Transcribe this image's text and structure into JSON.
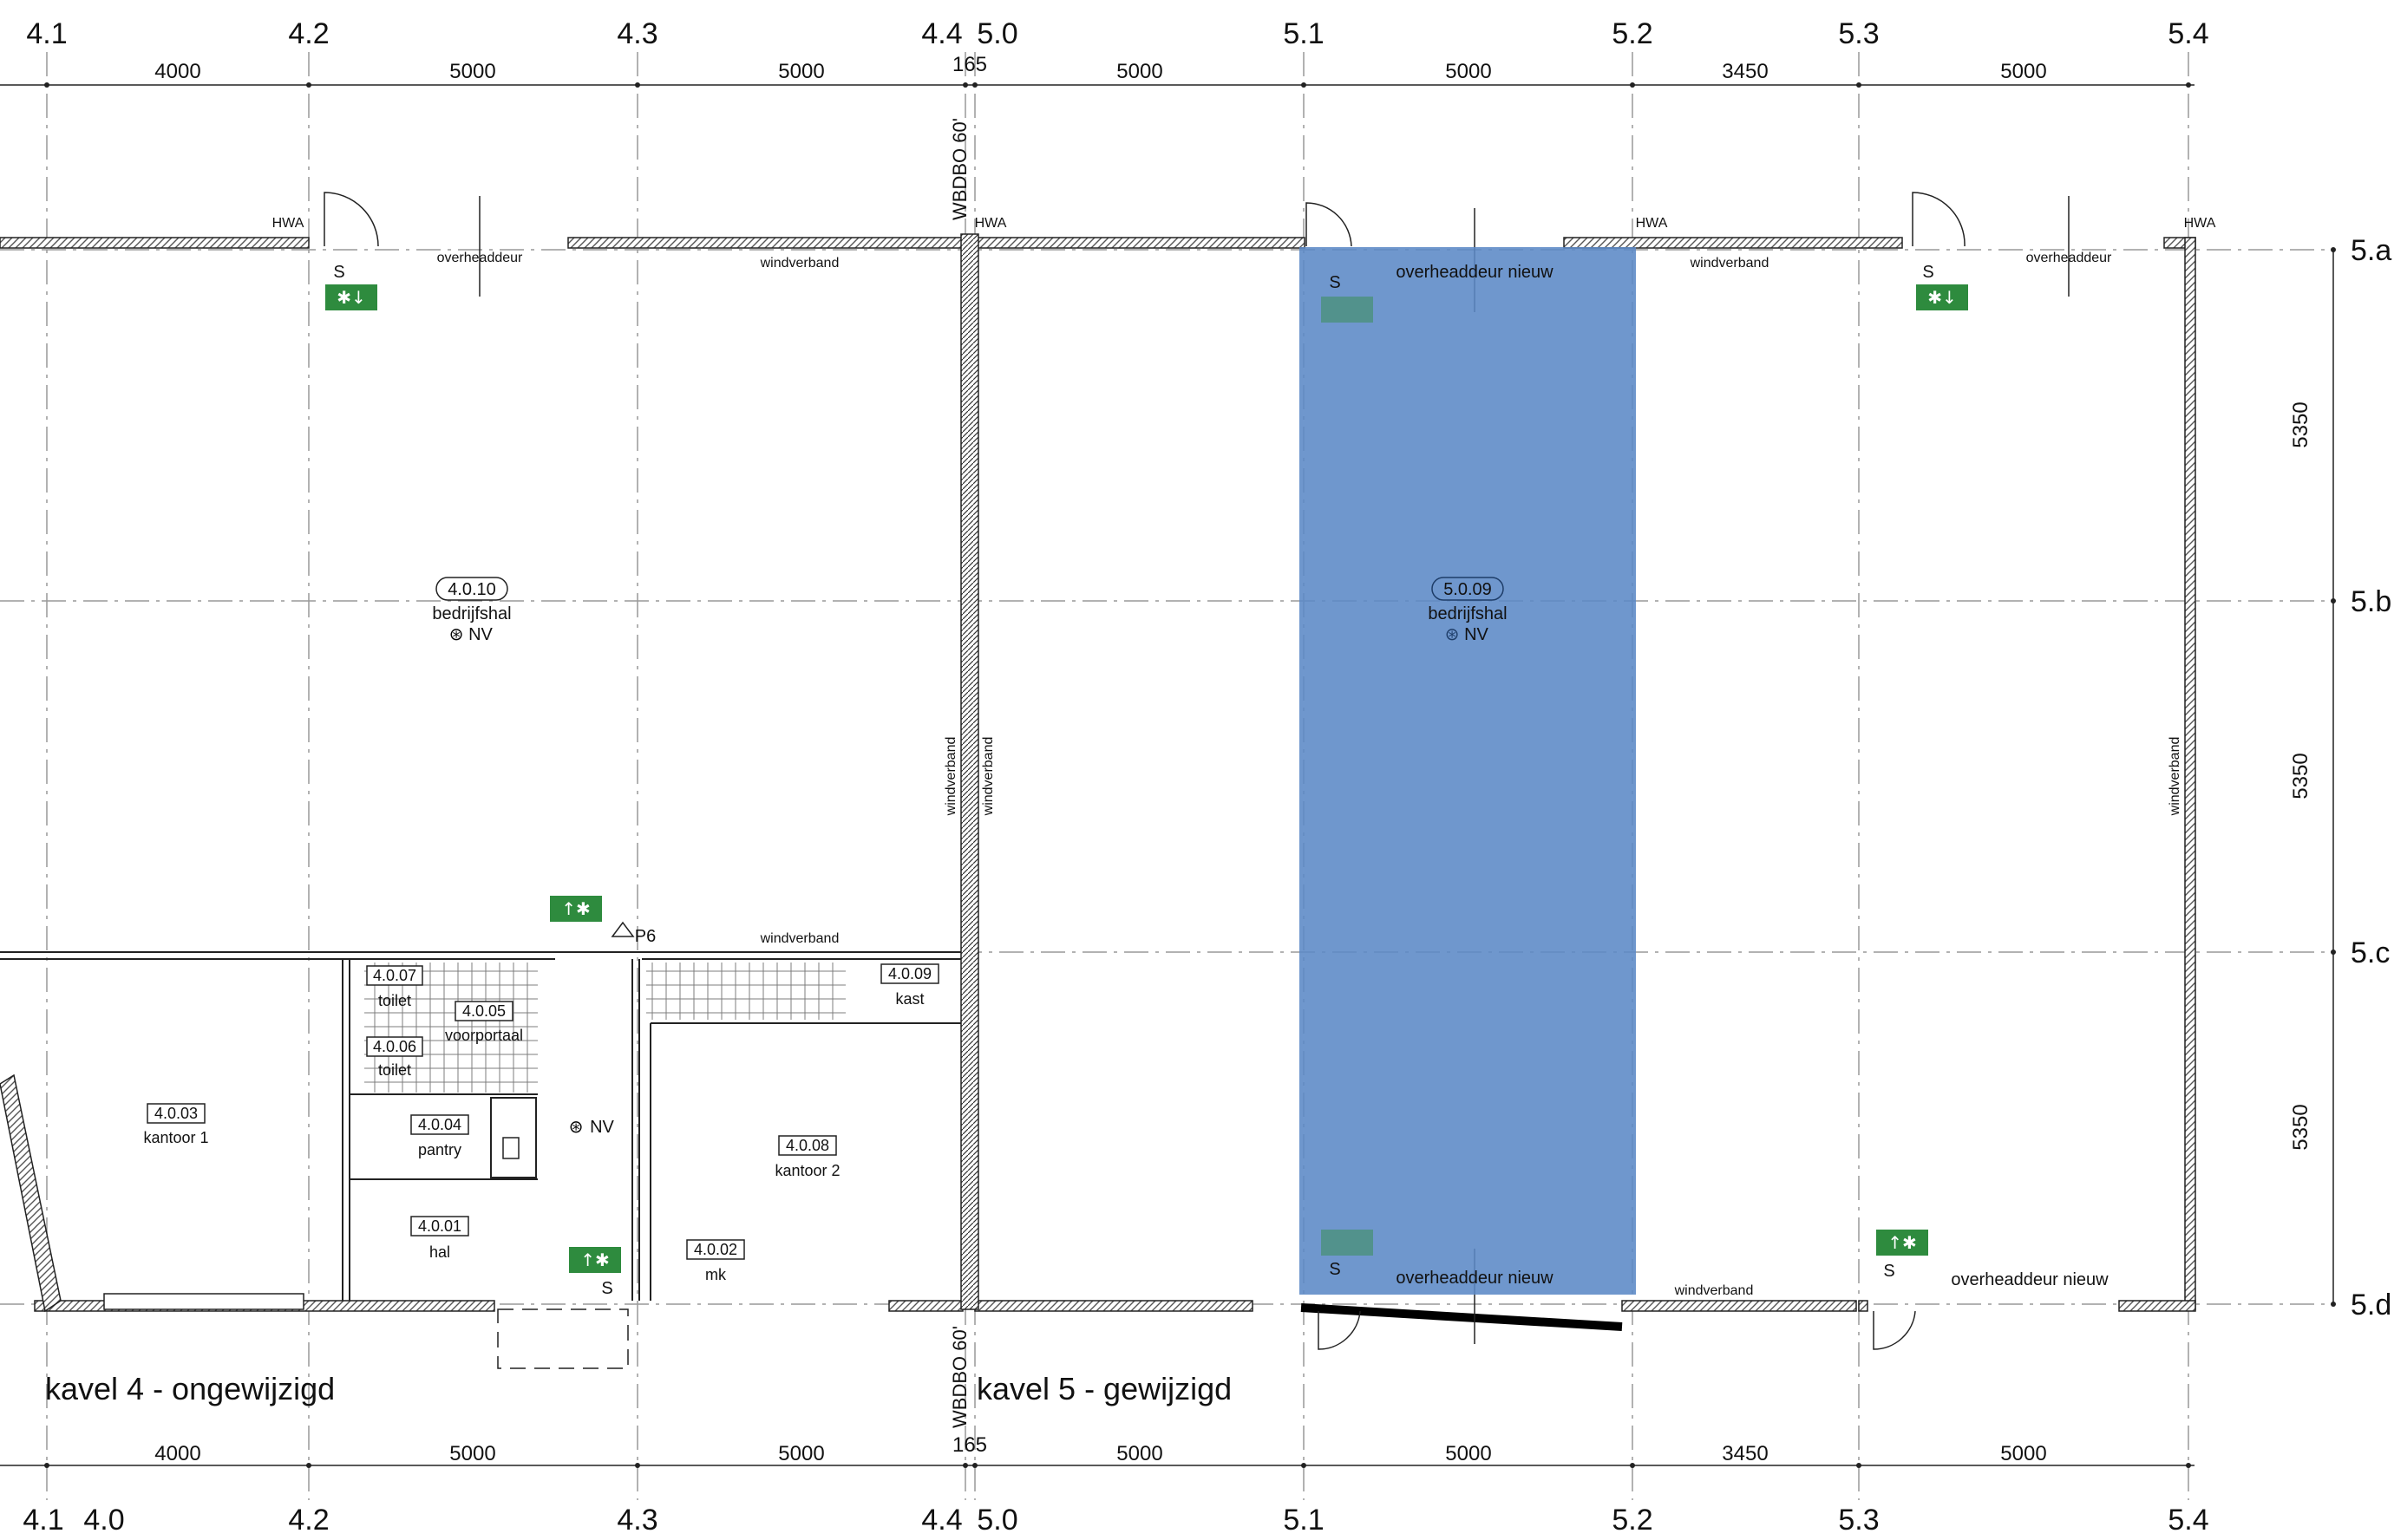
{
  "top_gridlines": [
    "4.1",
    "4.2",
    "4.3",
    "4.4",
    "5.0",
    "5.1",
    "5.2",
    "5.3",
    "5.4"
  ],
  "bottom_gridlines": [
    "4.1",
    "4.0",
    "4.2",
    "4.3",
    "4.4",
    "5.0",
    "5.1",
    "5.2",
    "5.3",
    "5.4"
  ],
  "side_gridlines": [
    "5.a",
    "5.b",
    "5.c",
    "5.d"
  ],
  "dimensions_horizontal": [
    "4000",
    "5000",
    "5000",
    "165",
    "5000",
    "5000",
    "3450",
    "5000"
  ],
  "dimensions_vertical": [
    "5350",
    "5350",
    "5350"
  ],
  "fire_separation_label": "WBDBO 60'",
  "kavel4_label": "kavel 4 - ongewijzigd",
  "kavel5_label": "kavel 5 - gewijzigd",
  "rooms": [
    {
      "code": "4.0.10",
      "name": "bedrijfshal",
      "extra": "NV"
    },
    {
      "code": "5.0.09",
      "name": "bedrijfshal",
      "extra": "NV"
    },
    {
      "code": "4.0.07",
      "name": "toilet"
    },
    {
      "code": "4.0.06",
      "name": "toilet"
    },
    {
      "code": "4.0.05",
      "name": "voorportaal"
    },
    {
      "code": "4.0.04",
      "name": "pantry"
    },
    {
      "code": "4.0.03",
      "name": "kantoor 1"
    },
    {
      "code": "4.0.01",
      "name": "hal"
    },
    {
      "code": "4.0.02",
      "name": "mk"
    },
    {
      "code": "4.0.08",
      "name": "kantoor 2"
    },
    {
      "code": "4.0.09",
      "name": "kast"
    }
  ],
  "annotations": {
    "hwa": "HWA",
    "overheaddeur": "overheaddeur",
    "overheaddeur_nieuw": "overheaddeur nieuw",
    "windverband": "windverband",
    "s": "S",
    "nv": "NV",
    "p6": "P6"
  },
  "colors": {
    "highlight": "#5b89c6",
    "exit_sign": "#2e8b3e",
    "line": "#222222"
  }
}
